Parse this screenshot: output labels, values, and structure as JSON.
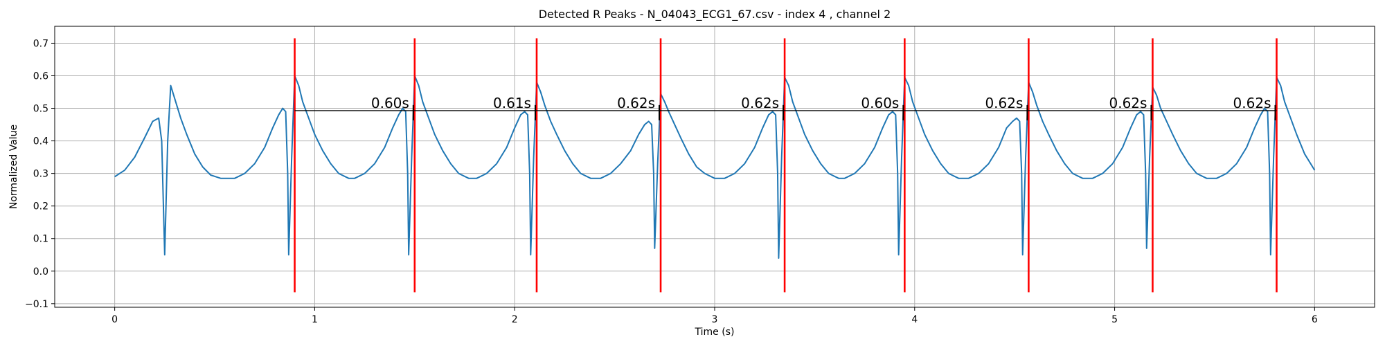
{
  "chart_data": {
    "type": "line",
    "title": "Detected R Peaks - N_04043_ECG1_67.csv - index 4 , channel 2",
    "xlabel": "Time (s)",
    "ylabel": "Normalized Value",
    "color": "#1f77b4",
    "x": [
      0,
      0.05,
      0.1,
      0.15,
      0.19,
      0.22,
      0.235,
      0.25,
      0.265,
      0.28,
      0.3,
      0.33,
      0.36,
      0.4,
      0.44,
      0.48,
      0.53,
      0.6,
      0.65,
      0.7,
      0.75,
      0.79,
      0.82,
      0.84,
      0.855,
      0.865,
      0.87,
      0.885,
      0.9,
      0.92,
      0.94,
      0.97,
      1.0,
      1.04,
      1.08,
      1.12,
      1.17,
      1.2,
      1.25,
      1.3,
      1.35,
      1.39,
      1.42,
      1.44,
      1.455,
      1.465,
      1.47,
      1.485,
      1.5,
      1.52,
      1.54,
      1.57,
      1.6,
      1.64,
      1.68,
      1.72,
      1.77,
      1.81,
      1.86,
      1.91,
      1.96,
      2.0,
      2.03,
      2.05,
      2.065,
      2.075,
      2.08,
      2.095,
      2.11,
      2.13,
      2.15,
      2.18,
      2.21,
      2.25,
      2.29,
      2.33,
      2.38,
      2.43,
      2.48,
      2.53,
      2.58,
      2.62,
      2.65,
      2.67,
      2.685,
      2.695,
      2.7,
      2.715,
      2.73,
      2.75,
      2.77,
      2.8,
      2.83,
      2.87,
      2.91,
      2.95,
      3.0,
      3.05,
      3.1,
      3.15,
      3.2,
      3.24,
      3.27,
      3.29,
      3.305,
      3.315,
      3.32,
      3.335,
      3.35,
      3.37,
      3.39,
      3.42,
      3.45,
      3.49,
      3.53,
      3.57,
      3.62,
      3.65,
      3.7,
      3.75,
      3.8,
      3.84,
      3.87,
      3.89,
      3.905,
      3.915,
      3.92,
      3.935,
      3.95,
      3.97,
      3.99,
      4.02,
      4.05,
      4.09,
      4.13,
      4.17,
      4.22,
      4.27,
      4.32,
      4.37,
      4.42,
      4.46,
      4.49,
      4.51,
      4.525,
      4.535,
      4.54,
      4.555,
      4.57,
      4.59,
      4.61,
      4.64,
      4.67,
      4.71,
      4.75,
      4.79,
      4.84,
      4.89,
      4.94,
      4.99,
      5.04,
      5.08,
      5.11,
      5.13,
      5.145,
      5.155,
      5.16,
      5.175,
      5.19,
      5.21,
      5.23,
      5.26,
      5.29,
      5.33,
      5.37,
      5.41,
      5.46,
      5.51,
      5.56,
      5.61,
      5.66,
      5.7,
      5.73,
      5.75,
      5.765,
      5.775,
      5.78,
      5.795,
      5.81,
      5.83,
      5.85,
      5.88,
      5.91,
      5.95,
      5.98,
      6.0
    ],
    "values": [
      0.29,
      0.31,
      0.35,
      0.41,
      0.46,
      0.47,
      0.4,
      0.05,
      0.4,
      0.57,
      0.53,
      0.47,
      0.42,
      0.36,
      0.32,
      0.295,
      0.285,
      0.285,
      0.3,
      0.33,
      0.38,
      0.44,
      0.48,
      0.5,
      0.49,
      0.3,
      0.05,
      0.35,
      0.6,
      0.57,
      0.52,
      0.47,
      0.42,
      0.37,
      0.33,
      0.3,
      0.285,
      0.285,
      0.3,
      0.33,
      0.38,
      0.44,
      0.48,
      0.5,
      0.49,
      0.3,
      0.05,
      0.35,
      0.6,
      0.57,
      0.52,
      0.47,
      0.42,
      0.37,
      0.33,
      0.3,
      0.285,
      0.285,
      0.3,
      0.33,
      0.38,
      0.44,
      0.48,
      0.49,
      0.48,
      0.3,
      0.05,
      0.35,
      0.58,
      0.55,
      0.51,
      0.46,
      0.42,
      0.37,
      0.33,
      0.3,
      0.285,
      0.285,
      0.3,
      0.33,
      0.37,
      0.42,
      0.45,
      0.46,
      0.45,
      0.3,
      0.07,
      0.33,
      0.545,
      0.52,
      0.49,
      0.45,
      0.41,
      0.36,
      0.32,
      0.3,
      0.285,
      0.285,
      0.3,
      0.33,
      0.38,
      0.44,
      0.48,
      0.49,
      0.48,
      0.3,
      0.04,
      0.35,
      0.595,
      0.57,
      0.52,
      0.47,
      0.42,
      0.37,
      0.33,
      0.3,
      0.285,
      0.285,
      0.3,
      0.33,
      0.38,
      0.44,
      0.48,
      0.49,
      0.48,
      0.3,
      0.05,
      0.35,
      0.595,
      0.57,
      0.52,
      0.47,
      0.42,
      0.37,
      0.33,
      0.3,
      0.285,
      0.285,
      0.3,
      0.33,
      0.38,
      0.44,
      0.46,
      0.47,
      0.46,
      0.3,
      0.05,
      0.35,
      0.58,
      0.55,
      0.51,
      0.46,
      0.42,
      0.37,
      0.33,
      0.3,
      0.285,
      0.285,
      0.3,
      0.33,
      0.38,
      0.44,
      0.48,
      0.49,
      0.48,
      0.3,
      0.07,
      0.35,
      0.565,
      0.54,
      0.5,
      0.46,
      0.42,
      0.37,
      0.33,
      0.3,
      0.285,
      0.285,
      0.3,
      0.33,
      0.38,
      0.44,
      0.48,
      0.5,
      0.49,
      0.3,
      0.05,
      0.35,
      0.595,
      0.57,
      0.52,
      0.47,
      0.42,
      0.36,
      0.33,
      0.31
    ],
    "peaks": [
      0.9,
      1.5,
      2.11,
      2.73,
      3.35,
      3.95,
      4.57,
      5.19,
      5.81
    ],
    "peak_color": "#ff0000",
    "peak_line_ylim": [
      -0.065,
      0.715
    ],
    "interval_y": 0.493,
    "interval_color": "#000000",
    "interval_labels": [
      "0.60s",
      "0.61s",
      "0.62s",
      "0.62s",
      "0.60s",
      "0.62s",
      "0.62s",
      "0.62s"
    ],
    "xlim": [
      -0.3,
      6.3
    ],
    "ylim": [
      -0.111,
      0.752
    ],
    "xticks": [
      0,
      1,
      2,
      3,
      4,
      5,
      6
    ],
    "yticks": [
      {
        "value": -0.1,
        "label": "−0.1"
      },
      {
        "value": 0,
        "label": "0.0"
      },
      0.1,
      0.2,
      0.3,
      0.4,
      0.5,
      0.6,
      0.7
    ],
    "grid": true
  }
}
